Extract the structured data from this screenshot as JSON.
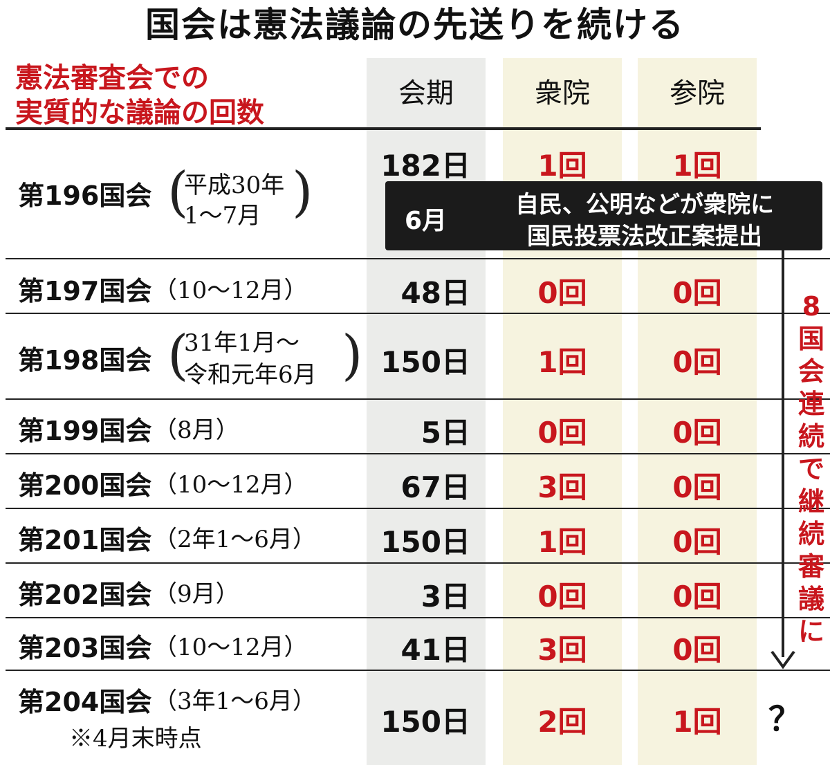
{
  "title": "国会は憲法議論の先送りを続ける",
  "subtitle_line1": "憲法審査会での",
  "subtitle_line2": "実質的な議論の回数",
  "headers": {
    "session_days": "会期",
    "lower_house": "衆院",
    "upper_house": "参院"
  },
  "colors": {
    "accent": "#c8161d",
    "column_gray": "#ebecea",
    "column_cream": "#f6f3df",
    "callout_bg": "#1b1b1b"
  },
  "chart_data": {
    "type": "table",
    "columns": [
      "会期",
      "衆院",
      "参院"
    ],
    "rows": [
      {
        "session": "第196国会",
        "period_line1": "平成30年",
        "period_line2": "1～7月",
        "days": "182日",
        "lower": "1回",
        "upper": "1回"
      },
      {
        "session": "第197国会",
        "period": "（10～12月）",
        "days": "48日",
        "lower": "0回",
        "upper": "0回"
      },
      {
        "session": "第198国会",
        "period_line1": "31年1月～",
        "period_line2": "令和元年6月",
        "days": "150日",
        "lower": "1回",
        "upper": "0回"
      },
      {
        "session": "第199国会",
        "period": "（8月）",
        "days": "5日",
        "lower": "0回",
        "upper": "0回"
      },
      {
        "session": "第200国会",
        "period": "（10～12月）",
        "days": "67日",
        "lower": "3回",
        "upper": "0回"
      },
      {
        "session": "第201国会",
        "period": "（2年1～6月）",
        "days": "150日",
        "lower": "1回",
        "upper": "0回"
      },
      {
        "session": "第202国会",
        "period": "（9月）",
        "days": "3日",
        "lower": "0回",
        "upper": "0回"
      },
      {
        "session": "第203国会",
        "period": "（10～12月）",
        "days": "41日",
        "lower": "3回",
        "upper": "0回"
      },
      {
        "session": "第204国会",
        "period": "（3年1～6月）",
        "note": "※4月末時点",
        "days": "150日",
        "lower": "2回",
        "upper": "1回"
      }
    ]
  },
  "callout": {
    "month": "6月",
    "line1": "自民、公明などが衆院に",
    "line2": "国民投票法改正案提出"
  },
  "side_label": "8国会連続で継続審議に",
  "question_mark": "？"
}
